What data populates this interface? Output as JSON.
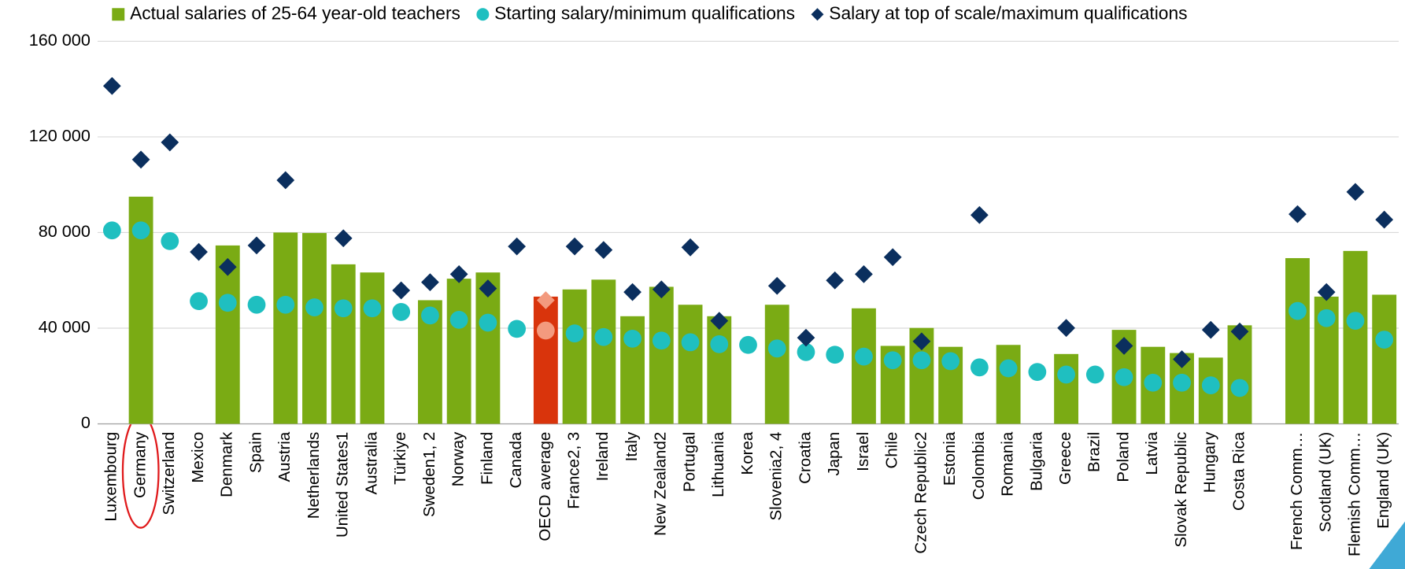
{
  "chart_data": {
    "type": "bar",
    "categories": [
      "Luxembourg",
      "Germany",
      "Switzerland",
      "Mexico",
      "Denmark",
      "Spain",
      "Austria",
      "Netherlands",
      "United States1",
      "Australia",
      "Türkiye",
      "Sweden1, 2",
      "Norway",
      "Finland",
      "Canada",
      "OECD average",
      "France2, 3",
      "Ireland",
      "Italy",
      "New Zealand2",
      "Portugal",
      "Lithuania",
      "Korea",
      "Slovenia2, 4",
      "Croatia",
      "Japan",
      "Israel",
      "Chile",
      "Czech Republic2",
      "Estonia",
      "Colombia",
      "Romania",
      "Bulgaria",
      "Greece",
      "Brazil",
      "Poland",
      "Latvia",
      "Slovak Republic",
      "Hungary",
      "Costa Rica",
      null,
      "French Comm…",
      "Scotland (UK)",
      "Flemish Comm…",
      "England (UK)"
    ],
    "series": [
      {
        "name": "Actual salaries of 25-64 year-old teachers",
        "marker": "bar",
        "color": "#7aab14",
        "values": [
          null,
          95000,
          null,
          null,
          74600,
          null,
          80000,
          79800,
          66700,
          63300,
          null,
          51700,
          60700,
          63300,
          null,
          53200,
          56200,
          60300,
          45000,
          57300,
          49800,
          45000,
          null,
          49800,
          null,
          null,
          48300,
          32600,
          40100,
          32200,
          null,
          33000,
          null,
          29200,
          null,
          39300,
          32200,
          29600,
          27700,
          41200,
          null,
          69300,
          53200,
          72300,
          54000
        ]
      },
      {
        "name": "Starting salary/minimum qualifications",
        "marker": "circle",
        "color": "#1fbfc0",
        "values": [
          80900,
          80900,
          76400,
          51300,
          50600,
          49800,
          49800,
          48700,
          48300,
          48300,
          46800,
          45300,
          43500,
          42300,
          39700,
          39000,
          37800,
          36300,
          35600,
          34800,
          34100,
          33300,
          33000,
          31500,
          30000,
          28900,
          28100,
          26600,
          26600,
          26200,
          23600,
          23200,
          21700,
          20600,
          20600,
          19500,
          17200,
          17200,
          16100,
          15000,
          null,
          47200,
          44200,
          43100,
          35200
        ]
      },
      {
        "name": "Salary at top of scale/maximum qualifications",
        "marker": "diamond",
        "color": "#0b2f5e",
        "values": [
          141300,
          110500,
          117700,
          71900,
          65600,
          74600,
          101900,
          null,
          77600,
          null,
          55800,
          59200,
          62600,
          56600,
          74200,
          51700,
          74200,
          72700,
          55100,
          56200,
          73800,
          43100,
          null,
          57700,
          36000,
          60000,
          62600,
          69700,
          34500,
          null,
          87300,
          null,
          null,
          40100,
          null,
          32600,
          null,
          27000,
          39300,
          38600,
          null,
          87700,
          55100,
          97000,
          85400
        ]
      }
    ],
    "highlight": {
      "category": "OECD average",
      "bar_color": "#d9340c",
      "marker_color": "#f39a7e"
    },
    "ylim": [
      0,
      160000
    ],
    "yticks": [
      0,
      {
        "value": 40000,
        "label": "40 000"
      },
      {
        "value": 80000,
        "label": "80 000"
      },
      {
        "value": 120000,
        "label": "120 000"
      },
      {
        "value": 160000,
        "label": "160 000"
      }
    ],
    "grid": true
  }
}
